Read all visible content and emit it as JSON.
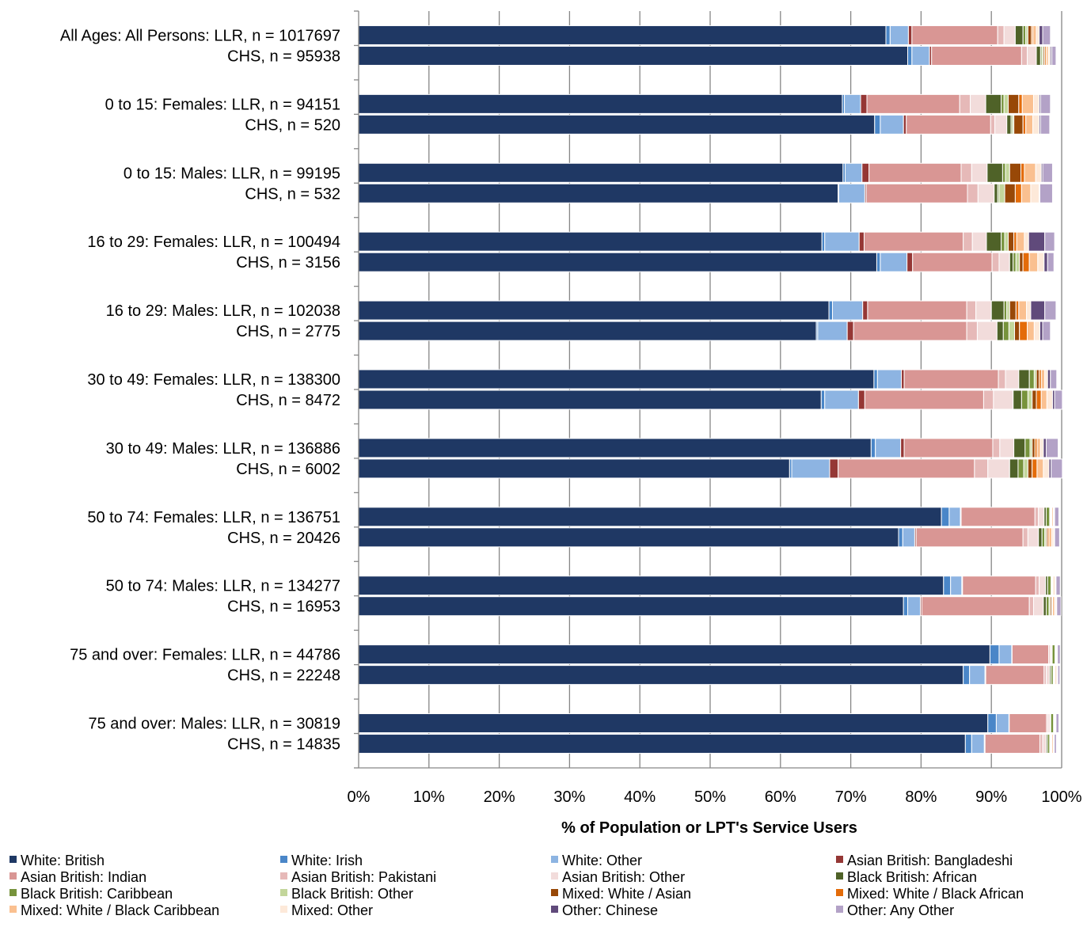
{
  "chart_data": {
    "type": "bar",
    "orientation": "horizontal",
    "stacked": "percent",
    "xlabel": "% of Population or LPT's Service Users",
    "xlim": [
      0,
      100
    ],
    "x_ticks": [
      "0%",
      "10%",
      "20%",
      "30%",
      "40%",
      "50%",
      "60%",
      "70%",
      "80%",
      "90%",
      "100%"
    ],
    "grid": "vertical",
    "legend_position": "bottom",
    "categories": [
      "All Ages: All Persons: LLR, n = 1017697",
      "CHS, n = 95938",
      "0 to 15: Females: LLR, n = 94151",
      "CHS, n = 520",
      "0 to 15: Males: LLR, n = 99195",
      "CHS, n = 532",
      "16 to 29: Females: LLR, n = 100494",
      "CHS, n = 3156",
      "16 to 29: Males: LLR, n = 102038",
      "CHS, n = 2775",
      "30 to 49: Females: LLR, n = 138300",
      "CHS, n = 8472",
      "30 to 49: Males: LLR, n = 136886",
      "CHS, n = 6002",
      "50 to 74: Females: LLR, n = 136751",
      "CHS, n = 20426",
      "50 to 74: Males: LLR, n = 134277",
      "CHS, n = 16953",
      "75 and over: Females: LLR, n = 44786",
      "CHS, n = 22248",
      "75 and over: Males: LLR, n = 30819",
      "CHS, n = 14835"
    ],
    "series": [
      {
        "name": "White: British",
        "color": "#1f3864",
        "values": [
          75.0,
          78.1,
          68.8,
          73.4,
          68.9,
          68.2,
          65.9,
          73.7,
          66.9,
          65.1,
          73.3,
          65.8,
          72.9,
          61.3,
          82.9,
          76.8,
          83.2,
          77.5,
          89.8,
          86.0,
          89.5,
          86.3
        ]
      },
      {
        "name": "White: Irish",
        "color": "#4a86c8",
        "values": [
          0.6,
          0.6,
          0.3,
          0.8,
          0.3,
          0.1,
          0.4,
          0.5,
          0.5,
          0.2,
          0.5,
          0.5,
          0.6,
          0.3,
          1.1,
          0.6,
          1.0,
          0.6,
          1.3,
          0.9,
          1.2,
          0.9
        ]
      },
      {
        "name": "White: Other",
        "color": "#8db4e2",
        "values": [
          2.6,
          2.5,
          2.3,
          3.3,
          2.4,
          3.7,
          4.9,
          3.8,
          4.3,
          4.2,
          3.4,
          4.8,
          3.6,
          5.4,
          1.6,
          1.7,
          1.6,
          1.8,
          1.8,
          2.2,
          1.8,
          1.8
        ]
      },
      {
        "name": "Asian British: Bangladeshi",
        "color": "#953735",
        "values": [
          0.5,
          0.3,
          0.9,
          0.4,
          1.0,
          0.2,
          0.7,
          0.8,
          0.7,
          0.9,
          0.4,
          0.9,
          0.5,
          1.2,
          0.1,
          0.2,
          0.1,
          0.2,
          0.05,
          0.1,
          0.05,
          0.1
        ]
      },
      {
        "name": "Asian British: Indian",
        "color": "#d99694",
        "values": [
          12.2,
          12.8,
          13.2,
          12.0,
          13.1,
          14.4,
          14.1,
          11.3,
          14.1,
          16.1,
          13.4,
          16.9,
          12.6,
          19.4,
          10.5,
          15.2,
          10.4,
          15.3,
          5.2,
          8.3,
          5.3,
          7.8
        ]
      },
      {
        "name": "Asian British: Pakistani",
        "color": "#e6b9b8",
        "values": [
          0.9,
          0.8,
          1.5,
          0.6,
          1.5,
          1.5,
          1.3,
          1.0,
          1.3,
          1.5,
          1.0,
          1.4,
          1.0,
          1.9,
          0.5,
          0.7,
          0.5,
          0.6,
          0.2,
          0.3,
          0.2,
          0.4
        ]
      },
      {
        "name": "Asian British: Other",
        "color": "#f2dcdb",
        "values": [
          1.6,
          1.3,
          2.2,
          1.7,
          2.2,
          2.3,
          2.0,
          1.5,
          2.2,
          2.8,
          1.9,
          2.8,
          2.0,
          3.1,
          0.8,
          1.5,
          0.9,
          1.4,
          0.2,
          0.5,
          0.3,
          0.5
        ]
      },
      {
        "name": "Black British: African",
        "color": "#4f6228",
        "values": [
          1.1,
          0.6,
          2.2,
          0.6,
          2.2,
          0.5,
          2.1,
          0.5,
          1.8,
          0.9,
          1.5,
          1.2,
          1.6,
          1.2,
          0.3,
          0.5,
          0.3,
          0.4,
          0.1,
          0.2,
          0.1,
          0.2
        ]
      },
      {
        "name": "Black British: Caribbean",
        "color": "#77933c",
        "values": [
          0.4,
          0.2,
          0.4,
          0.2,
          0.4,
          0.2,
          0.5,
          0.4,
          0.4,
          0.8,
          0.7,
          0.9,
          0.7,
          0.8,
          0.5,
          0.4,
          0.5,
          0.4,
          0.4,
          0.3,
          0.4,
          0.3
        ]
      },
      {
        "name": "Black British: Other",
        "color": "#c3d69b",
        "values": [
          0.3,
          0.2,
          0.6,
          0.2,
          0.6,
          0.8,
          0.5,
          0.5,
          0.4,
          0.8,
          0.3,
          0.6,
          0.3,
          0.6,
          0.1,
          0.2,
          0.1,
          0.2,
          0.05,
          0.1,
          0.05,
          0.1
        ]
      },
      {
        "name": "Mixed: White / Asian",
        "color": "#984807",
        "values": [
          0.5,
          0.2,
          1.5,
          1.3,
          1.6,
          1.5,
          0.8,
          0.5,
          0.9,
          0.7,
          0.4,
          0.6,
          0.4,
          0.6,
          0.1,
          0.2,
          0.1,
          0.2,
          0.05,
          0.1,
          0.05,
          0.1
        ]
      },
      {
        "name": "Mixed: White / Black African",
        "color": "#e46c0a",
        "values": [
          0.2,
          0.2,
          0.5,
          0.4,
          0.5,
          0.9,
          0.4,
          0.9,
          0.4,
          1.1,
          0.3,
          0.7,
          0.3,
          0.7,
          0.1,
          0.2,
          0.1,
          0.1,
          0.05,
          0.1,
          0.05,
          0.1
        ]
      },
      {
        "name": "Mixed: White / Black Caribbean",
        "color": "#fac090",
        "values": [
          0.5,
          0.3,
          1.6,
          1.0,
          1.6,
          1.3,
          1.1,
          1.2,
          1.1,
          1.0,
          0.5,
          0.8,
          0.5,
          0.9,
          0.2,
          0.4,
          0.2,
          0.3,
          0.1,
          0.2,
          0.1,
          0.2
        ]
      },
      {
        "name": "Mixed: Other",
        "color": "#fde9d9",
        "values": [
          0.4,
          0.3,
          0.8,
          0.9,
          0.8,
          1.2,
          0.6,
          0.9,
          0.6,
          0.8,
          0.4,
          0.8,
          0.4,
          0.8,
          0.1,
          0.3,
          0.1,
          0.2,
          0.05,
          0.1,
          0.05,
          0.1
        ]
      },
      {
        "name": "Other: Chinese",
        "color": "#604a7b",
        "values": [
          0.5,
          0.2,
          0.2,
          0.2,
          0.2,
          0.1,
          2.3,
          0.5,
          2.0,
          0.4,
          0.4,
          0.3,
          0.4,
          0.3,
          0.1,
          0.1,
          0.1,
          0.1,
          0.05,
          0.05,
          0.05,
          0.05
        ]
      },
      {
        "name": "Other: Any Other",
        "color": "#b3a2c7",
        "values": [
          1.1,
          0.6,
          1.4,
          1.3,
          1.4,
          1.8,
          1.4,
          0.9,
          1.6,
          1.1,
          0.9,
          1.1,
          1.7,
          1.6,
          0.6,
          0.7,
          0.6,
          0.6,
          0.4,
          0.3,
          0.4,
          0.3
        ]
      }
    ]
  }
}
